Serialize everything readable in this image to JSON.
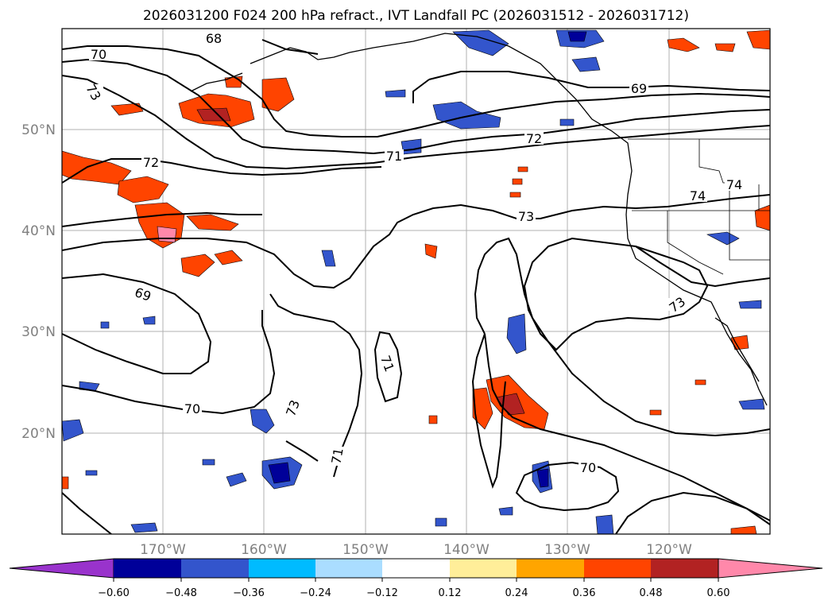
{
  "title": "2026031200 F024 200 hPa refract., IVT Landfall PC (2026031512 - 2026031712)",
  "map": {
    "lat_labels": [
      "50°N",
      "40°N",
      "30°N",
      "20°N"
    ],
    "lon_labels": [
      "170°W",
      "160°W",
      "150°W",
      "140°W",
      "130°W",
      "120°W"
    ],
    "contour_labels": [
      "68",
      "70",
      "73",
      "72",
      "71",
      "69",
      "73",
      "72",
      "73",
      "69",
      "74",
      "74",
      "71",
      "70",
      "71",
      "70",
      "73"
    ],
    "colors": {
      "contour": "#000000",
      "grid": "#b0b0b0",
      "coast": "#000000"
    }
  },
  "colorbar": {
    "levels": [
      "−0.60",
      "−0.48",
      "−0.36",
      "−0.24",
      "−0.12",
      "0.12",
      "0.24",
      "0.36",
      "0.48",
      "0.60"
    ],
    "colors": [
      "#9933cc",
      "#000099",
      "#3355cc",
      "#00bbff",
      "#aaddff",
      "#ffffff",
      "#ffee99",
      "#ffa500",
      "#ff4400",
      "#b22222",
      "#ff88aa"
    ]
  }
}
